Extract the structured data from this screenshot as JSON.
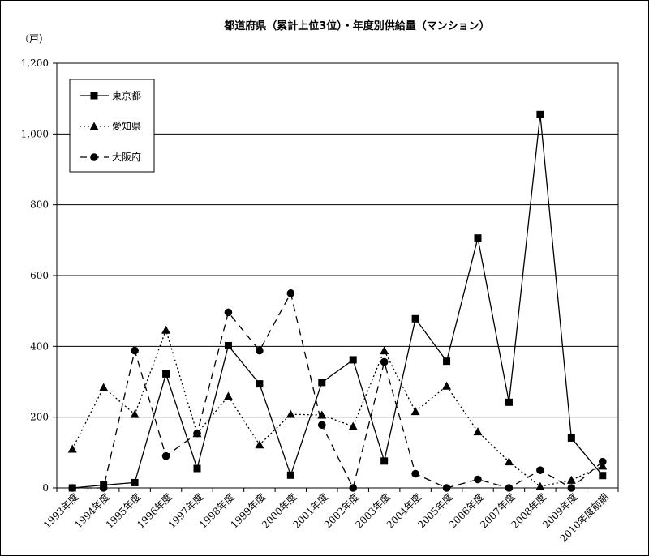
{
  "chart_data": {
    "type": "line",
    "title": "都道府県（累計上位3位）・年度別供給量（マンション）",
    "ylabel": "（戸）",
    "xlabel": "",
    "ylim": [
      0,
      1200
    ],
    "yticks": [
      "0",
      "200",
      "400",
      "600",
      "800",
      "1,000",
      "1,200"
    ],
    "ytick_values": [
      0,
      200,
      400,
      600,
      800,
      1000,
      1200
    ],
    "grid": true,
    "legend_position": "top-left",
    "categories": [
      "1993年度",
      "1994年度",
      "1995年度",
      "1996年度",
      "1997年度",
      "1998年度",
      "1999年度",
      "2000年度",
      "2001年度",
      "2002年度",
      "2003年度",
      "2004年度",
      "2005年度",
      "2006年度",
      "2007年度",
      "2008年度",
      "2009年度",
      "2010年度前期"
    ],
    "series": [
      {
        "name": "東京都",
        "marker": "square",
        "line": "solid",
        "values": [
          0,
          8,
          15,
          322,
          55,
          402,
          294,
          36,
          298,
          362,
          76,
          478,
          358,
          706,
          242,
          1055,
          141,
          35
        ]
      },
      {
        "name": "愛知県",
        "marker": "triangle",
        "line": "dotted",
        "values": [
          110,
          284,
          208,
          446,
          154,
          259,
          122,
          208,
          206,
          174,
          388,
          216,
          288,
          159,
          74,
          4,
          22,
          62
        ]
      },
      {
        "name": "大阪府",
        "marker": "circle",
        "line": "dashed",
        "values": [
          0,
          0,
          388,
          90,
          154,
          496,
          388,
          550,
          178,
          0,
          356,
          40,
          0,
          24,
          0,
          50,
          0,
          74
        ]
      }
    ]
  }
}
